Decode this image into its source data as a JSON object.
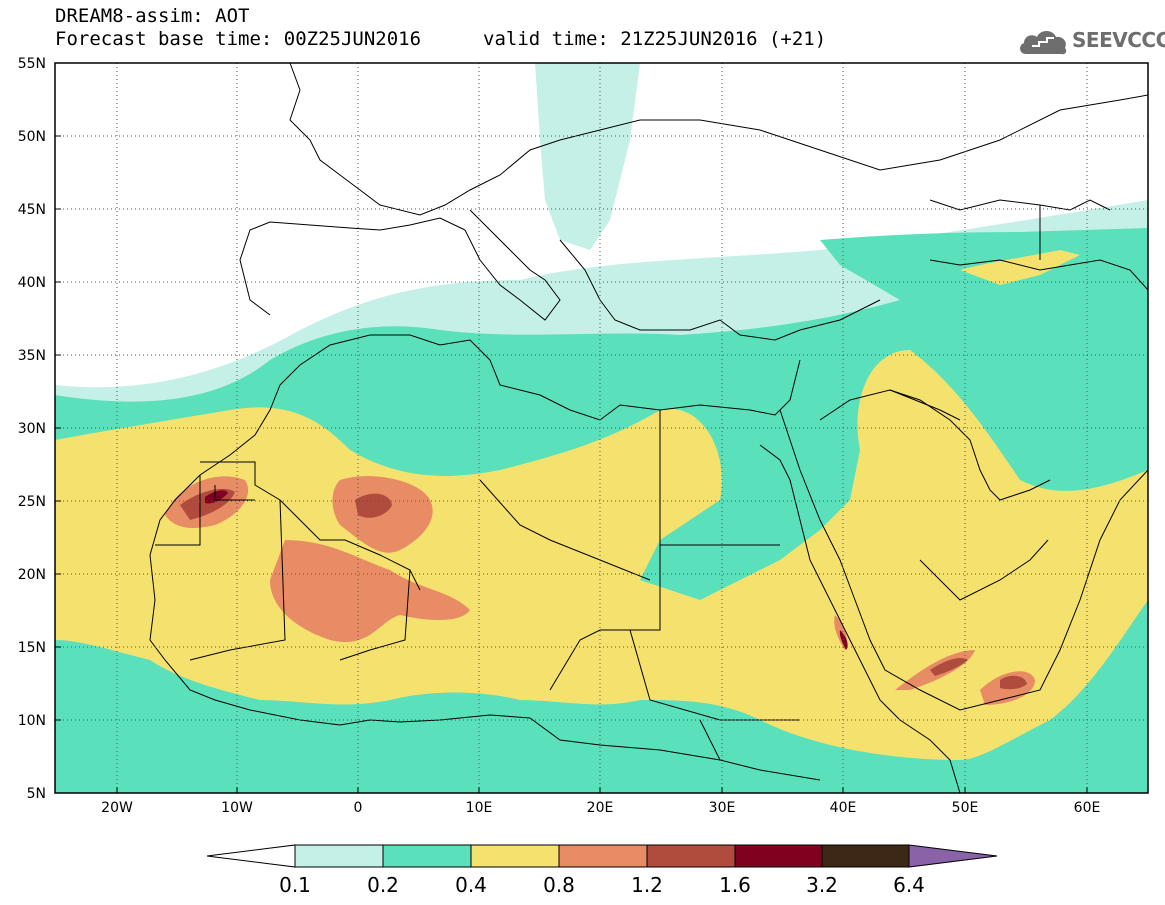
{
  "header": {
    "title": "DREAM8-assim: AOT",
    "base_time": "Forecast base time: 00Z25JUN2016",
    "valid_time": "valid time: 21Z25JUN2016 (+21)"
  },
  "logo": {
    "text": "SEEVCCC",
    "icon": "cloud-icon"
  },
  "map": {
    "lat_labels": [
      "55N",
      "50N",
      "45N",
      "40N",
      "35N",
      "30N",
      "25N",
      "20N",
      "15N",
      "10N",
      "5N"
    ],
    "lon_labels": [
      "20W",
      "10W",
      "0",
      "10E",
      "20E",
      "30E",
      "40E",
      "50E",
      "60E"
    ]
  },
  "colorbar": {
    "labels": [
      "0.1",
      "0.2",
      "0.4",
      "0.8",
      "1.2",
      "1.6",
      "3.2",
      "6.4"
    ],
    "colors": [
      "#ffffff",
      "#c5f0e8",
      "#5be0bc",
      "#f5e16e",
      "#e88c65",
      "#b04c3e",
      "#800020",
      "#3d2716",
      "#8a62a8"
    ]
  }
}
